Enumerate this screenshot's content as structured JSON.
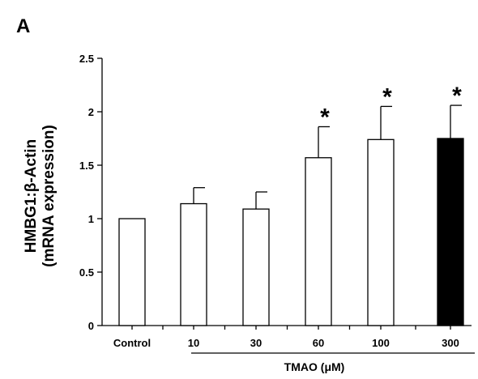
{
  "panel_label": "A",
  "chart_data": {
    "type": "bar",
    "categories": [
      "Control",
      "10",
      "30",
      "60",
      "100",
      "300"
    ],
    "values": [
      1.0,
      1.14,
      1.09,
      1.57,
      1.74,
      1.75
    ],
    "errors": [
      0,
      0.15,
      0.16,
      0.29,
      0.31,
      0.31
    ],
    "significance": [
      "",
      "",
      "",
      "*",
      "*",
      "*"
    ],
    "bar_colors": [
      "#ffffff",
      "#ffffff",
      "#ffffff",
      "#ffffff",
      "#ffffff",
      "#000000"
    ],
    "ylabel_line1": "HMBG1:β-Actin",
    "ylabel_line2": "(mRNA expression)",
    "xlabel": "TMAO (μM)",
    "ylim": [
      0,
      2.5
    ],
    "yticks": [
      "0",
      "0.5",
      "1",
      "1.5",
      "2",
      "2.5"
    ],
    "grid": false
  }
}
